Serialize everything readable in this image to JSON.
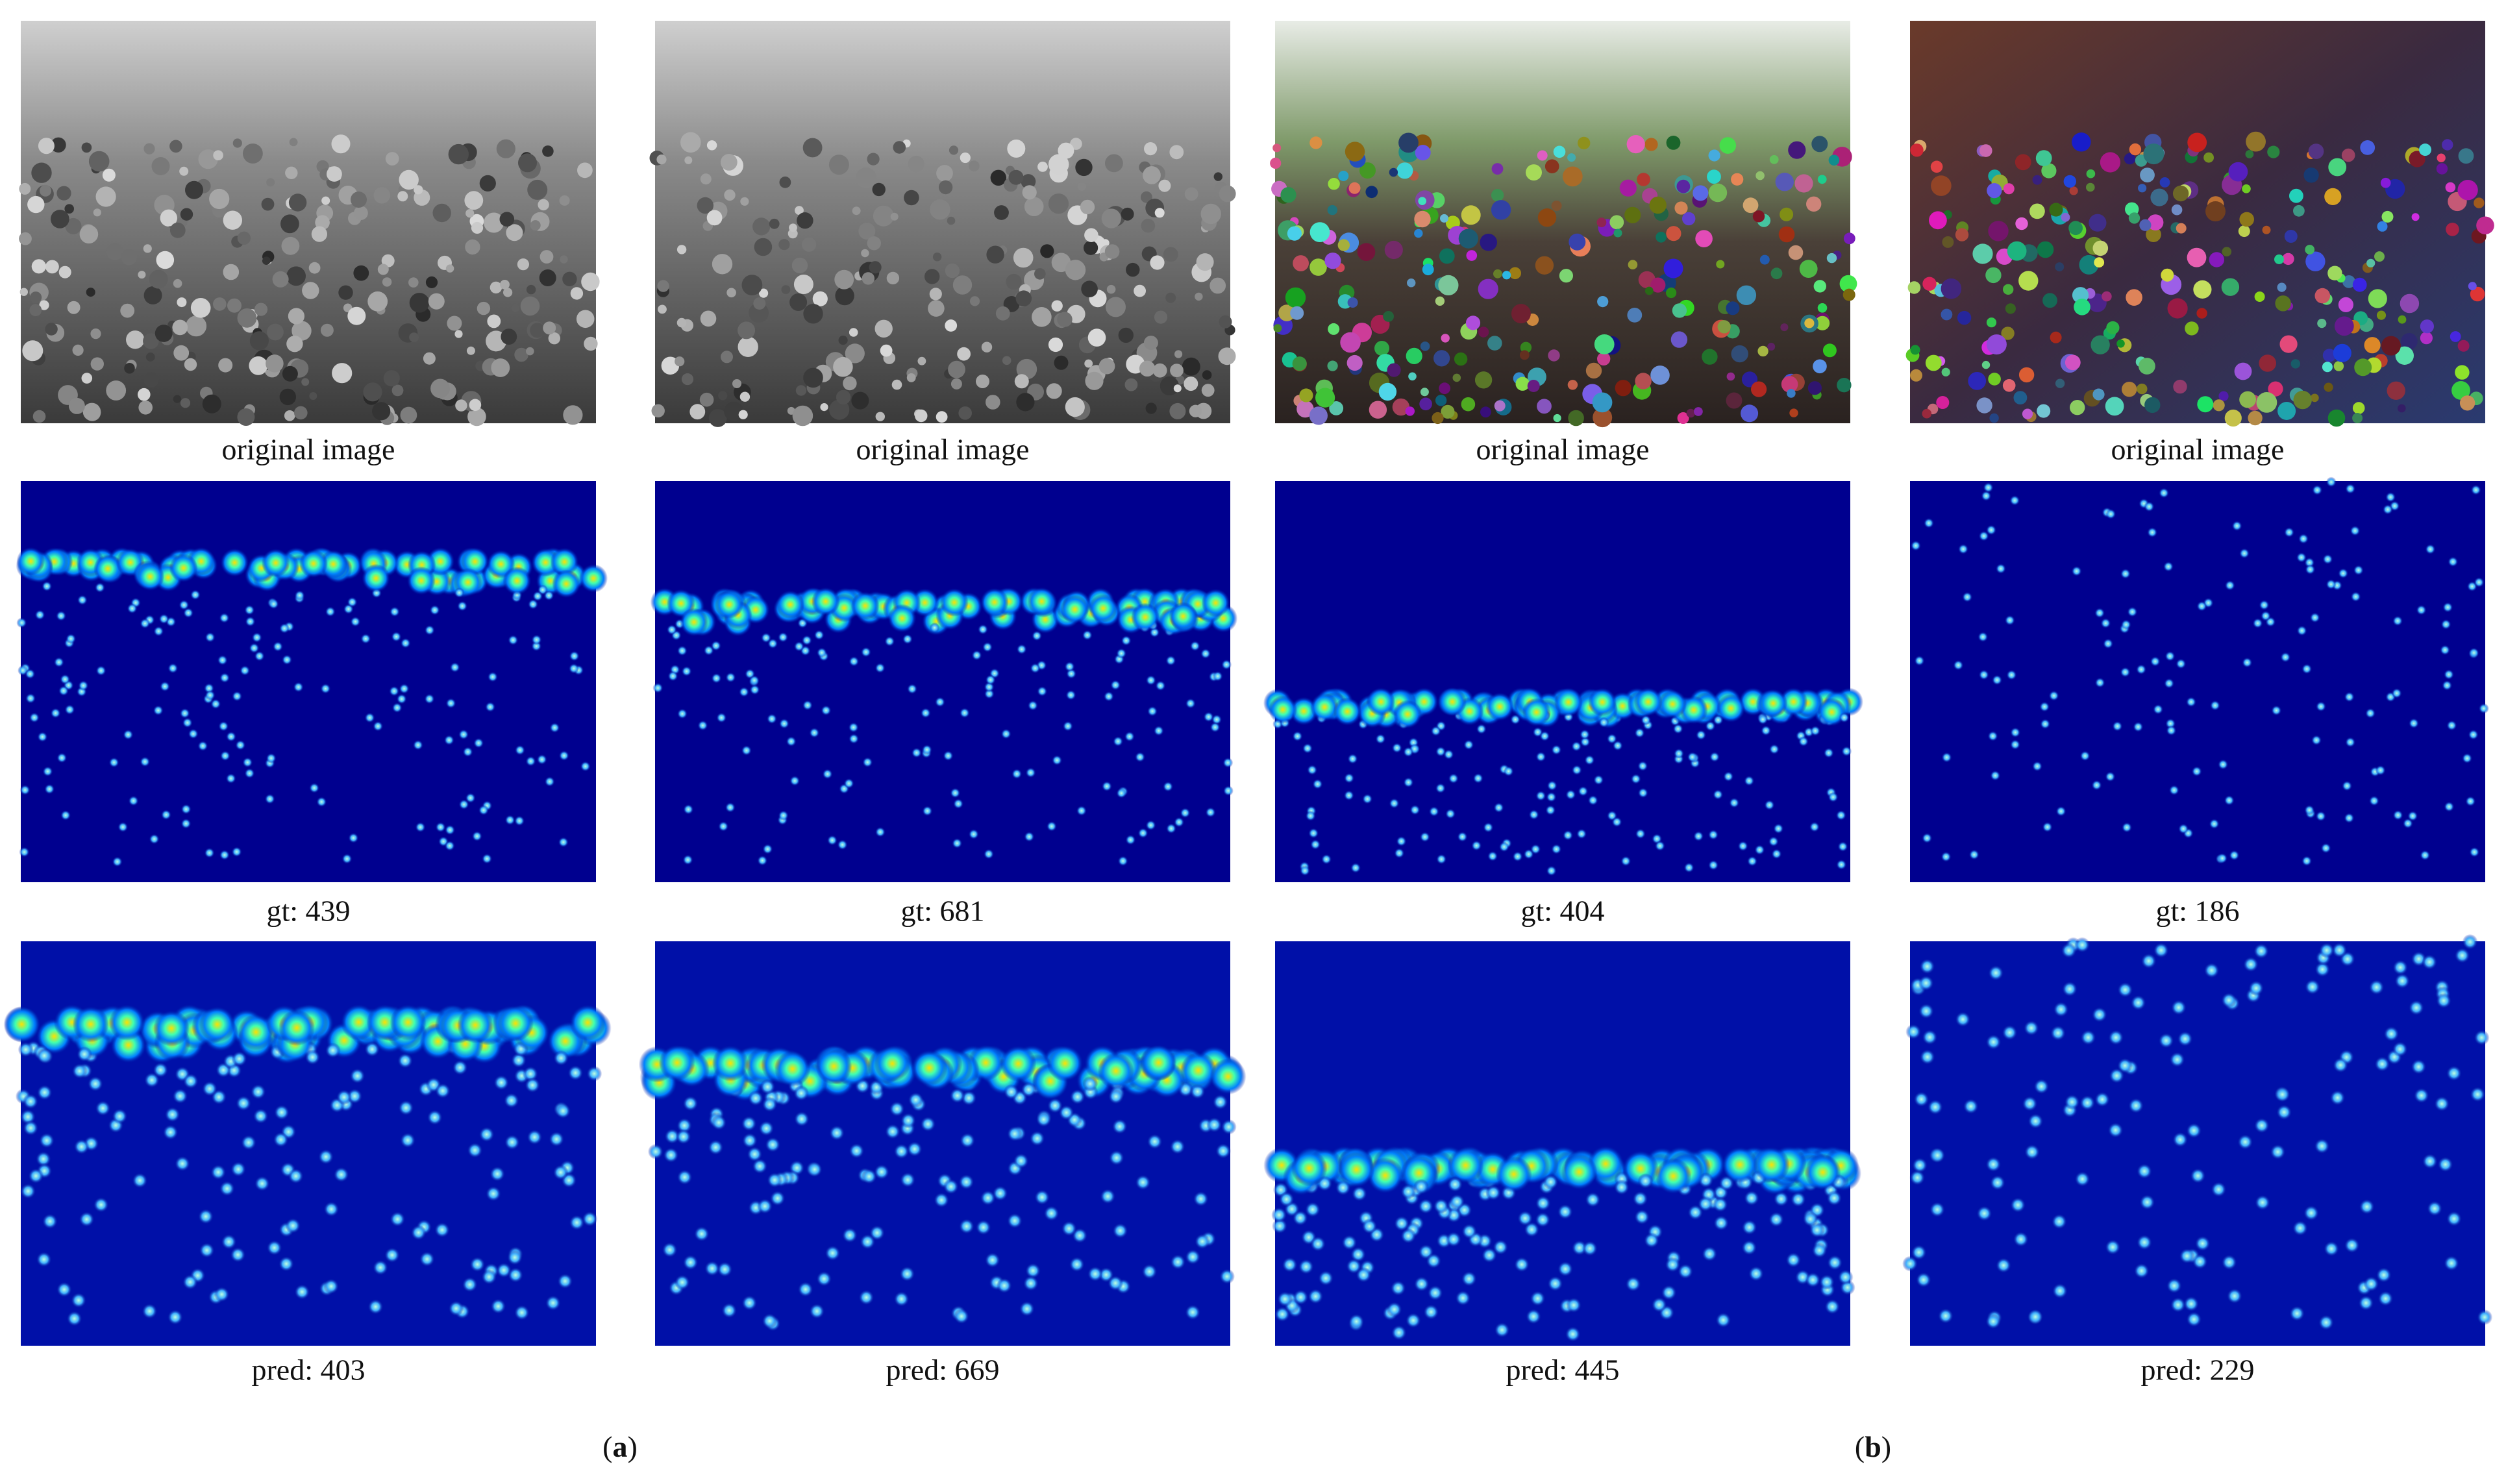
{
  "figure": {
    "columns": [
      {
        "original": "original image",
        "gt": "gt: 439",
        "pred": "pred: 403"
      },
      {
        "original": "original image",
        "gt": "gt: 681",
        "pred": "pred: 669"
      },
      {
        "original": "original image",
        "gt": "gt: 404",
        "pred": "pred: 445"
      },
      {
        "original": "original image",
        "gt": "gt: 186",
        "pred": "pred: 229"
      }
    ],
    "panels": [
      {
        "open": "(",
        "letter": "a",
        "close": ")"
      },
      {
        "open": "(",
        "letter": "b",
        "close": ")"
      }
    ]
  }
}
